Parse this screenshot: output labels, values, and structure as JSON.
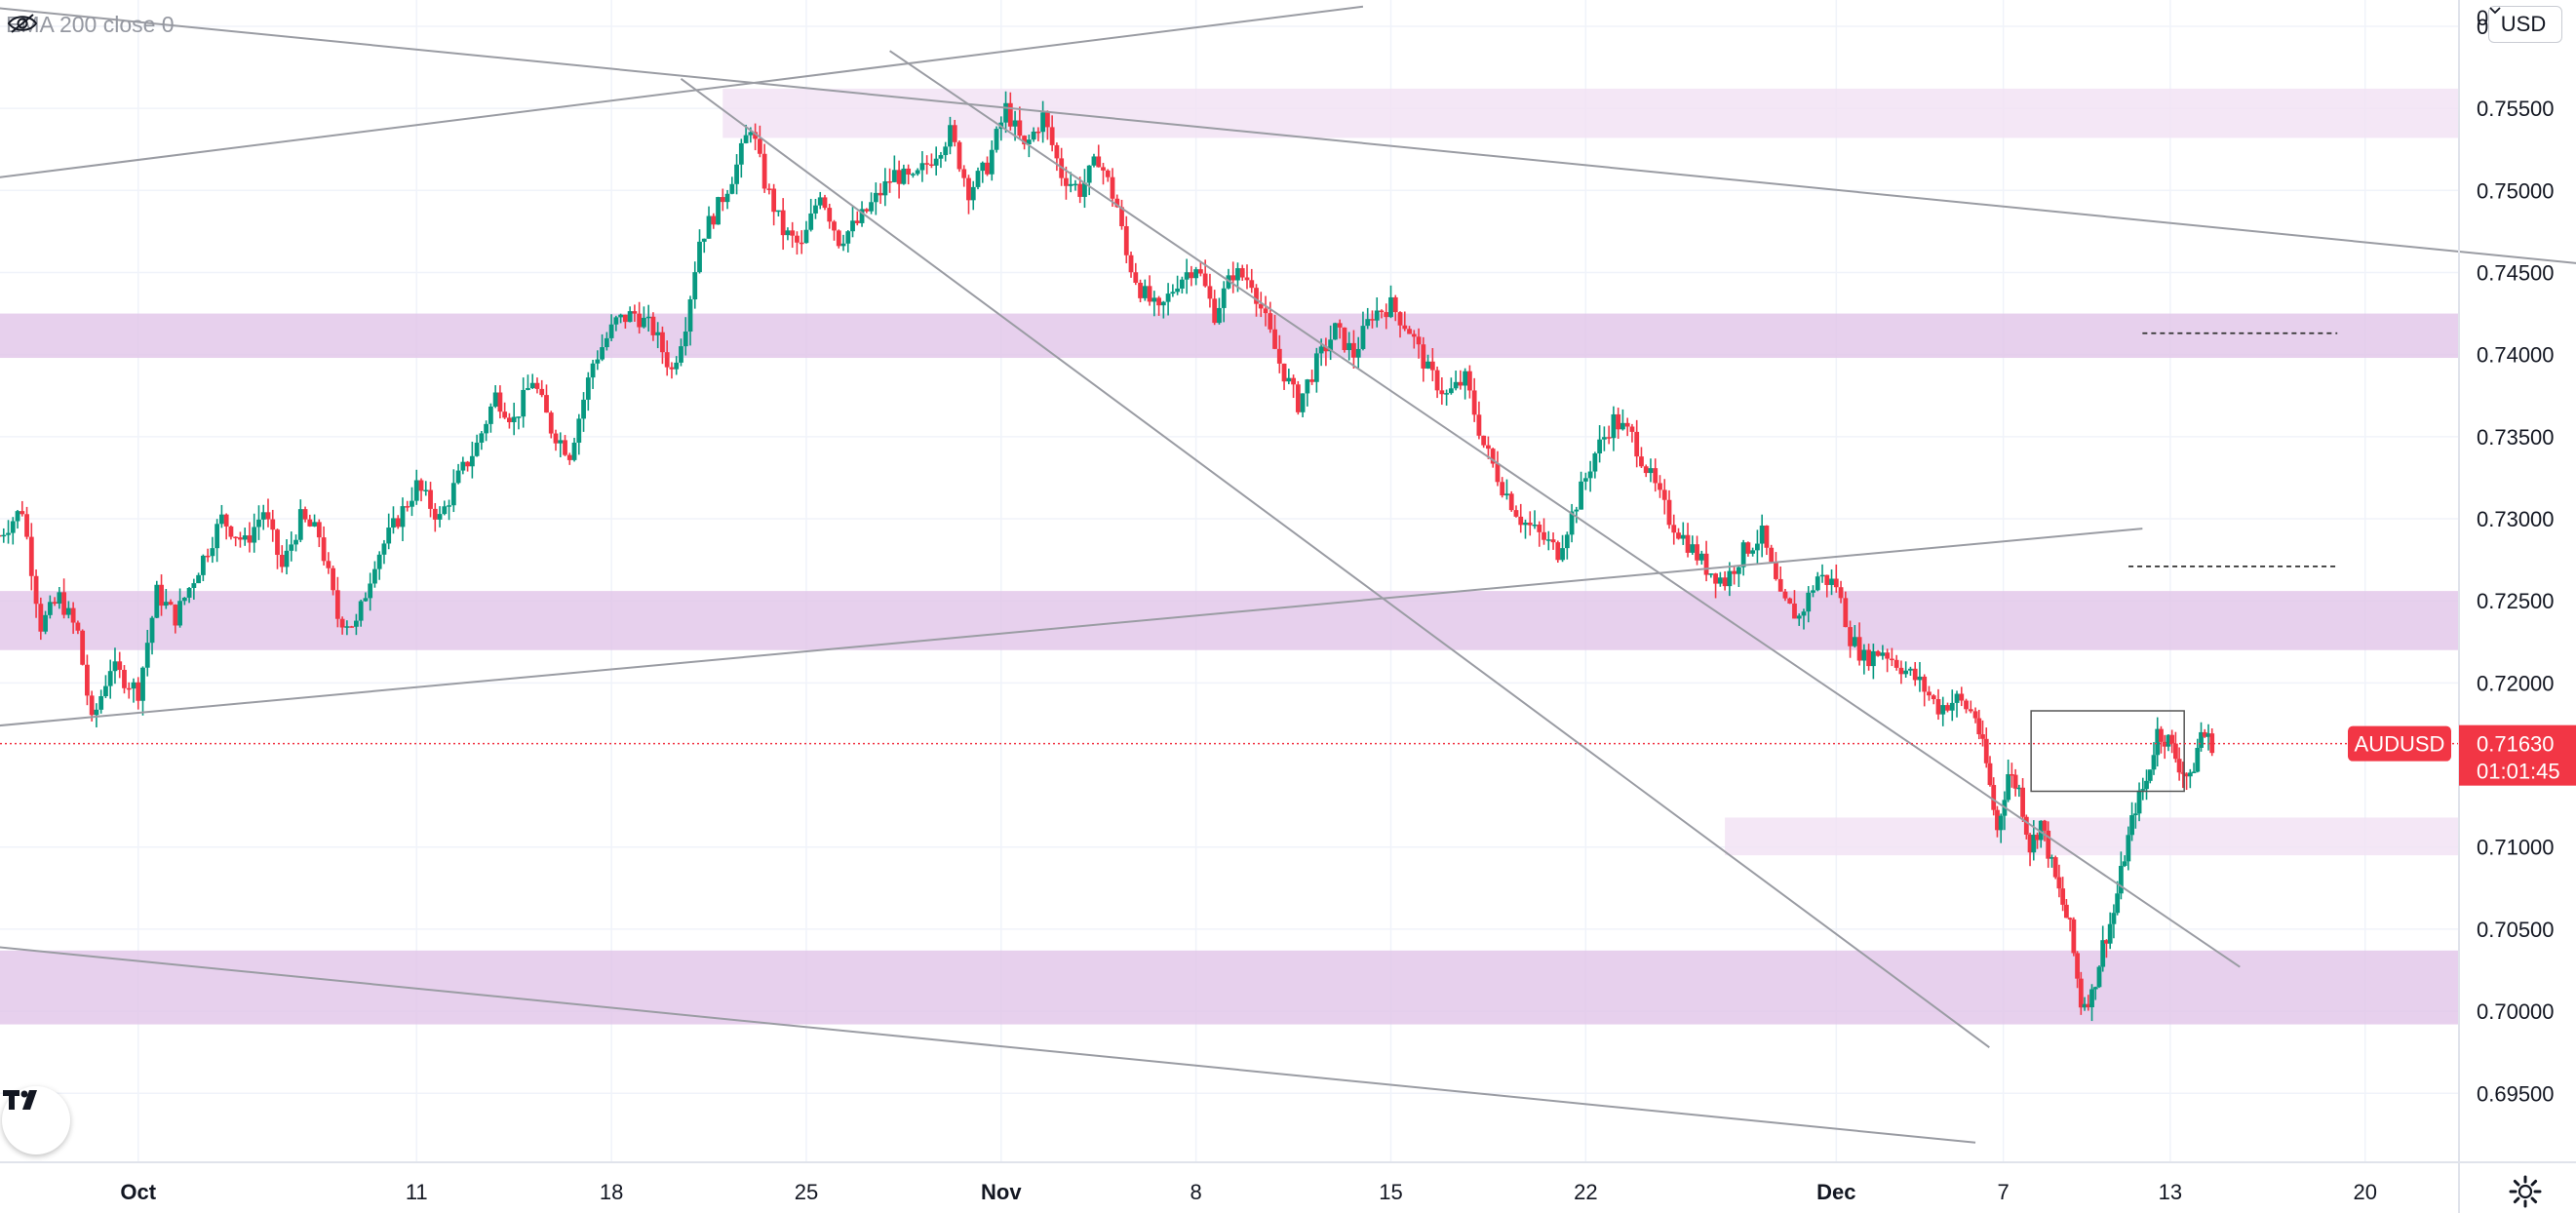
{
  "legend": {
    "indicator": "EMA 200 close 0",
    "visibility_icon": "eye-crossed-icon"
  },
  "currency_selector": {
    "value": "USD",
    "icon": "chevron-down-icon"
  },
  "symbol_badge": {
    "symbol": "AUDUSD",
    "price": "0.71630",
    "countdown": "01:01:45",
    "color": "#f23645"
  },
  "colors": {
    "up": "#089981",
    "down": "#f23645",
    "zone_strong": "#e1c4e9",
    "zone_light": "#f1e1f4",
    "trendline": "#9a9ca3",
    "grid": "#f0f3fa",
    "last_price_line": "#f23645"
  },
  "chart_data": {
    "type": "candlestick",
    "symbol": "AUDUSD",
    "timeframe_hint": "4h",
    "x_axis": {
      "ticks": [
        "Oct",
        "11",
        "18",
        "25",
        "Nov",
        "8",
        "15",
        "22",
        "Dec",
        "7",
        "13",
        "20"
      ]
    },
    "y_axis": {
      "ylim": [
        0.6908,
        0.7616
      ],
      "ticks": [
        "0.76000",
        "0.75500",
        "0.75000",
        "0.74500",
        "0.74000",
        "0.73500",
        "0.73000",
        "0.72500",
        "0.72000",
        "0.71630",
        "0.71000",
        "0.70500",
        "0.70000",
        "0.69500"
      ],
      "top_tick": "0"
    },
    "last_price": 0.7163,
    "zones": [
      {
        "from": 0.7532,
        "to": 0.7562,
        "strength": "light",
        "start": "2021-10-22"
      },
      {
        "from": 0.7398,
        "to": 0.7425,
        "strength": "strong",
        "start": "2021-09-26"
      },
      {
        "from": 0.722,
        "to": 0.7256,
        "strength": "strong",
        "start": "2021-09-26"
      },
      {
        "from": 0.7095,
        "to": 0.7118,
        "strength": "light",
        "start": "2021-11-27"
      },
      {
        "from": 0.6992,
        "to": 0.7037,
        "strength": "strong",
        "start": "2021-09-26"
      }
    ],
    "trendlines": [
      {
        "x1": "2021-09-26T00:00",
        "y1": 0.7611,
        "x2": "2021-12-28T00:00",
        "y2": 0.7455
      },
      {
        "x1": "2021-09-26T00:00",
        "y1": 0.7508,
        "x2": "2021-11-14T00:00",
        "y2": 0.7612
      },
      {
        "x1": "2021-10-20T12:00",
        "y1": 0.7568,
        "x2": "2021-12-06T12:00",
        "y2": 0.6978
      },
      {
        "x1": "2021-10-28T00:00",
        "y1": 0.7585,
        "x2": "2021-12-15T12:00",
        "y2": 0.7027
      },
      {
        "x1": "2021-09-26T00:00",
        "y1": 0.7174,
        "x2": "2021-12-12T00:00",
        "y2": 0.7294
      },
      {
        "x1": "2021-09-26T00:00",
        "y1": 0.7039,
        "x2": "2021-12-06T00:00",
        "y2": 0.692
      }
    ],
    "dashed_levels": [
      {
        "price": 0.7413,
        "from": "2021-12-12T00:00",
        "to": "2021-12-19T00:00"
      },
      {
        "price": 0.7271,
        "from": "2021-12-11T12:00",
        "to": "2021-12-19T00:00"
      }
    ],
    "range_box": {
      "from": "2021-12-08T00:00",
      "to": "2021-12-13T12:00",
      "high": 0.7183,
      "low": 0.7134
    },
    "path": [
      [
        "2021-09-26T00:00",
        0.729
      ],
      [
        "2021-09-26T20:00",
        0.7306
      ],
      [
        "2021-09-27T12:00",
        0.7235
      ],
      [
        "2021-09-28T04:00",
        0.7252
      ],
      [
        "2021-09-28T20:00",
        0.723
      ],
      [
        "2021-09-29T08:00",
        0.7175
      ],
      [
        "2021-09-30T00:00",
        0.721
      ],
      [
        "2021-10-01T00:00",
        0.7195
      ],
      [
        "2021-10-01T16:00",
        0.7255
      ],
      [
        "2021-10-02T08:00",
        0.724
      ],
      [
        "2021-10-03T04:00",
        0.727
      ],
      [
        "2021-10-04T00:00",
        0.73
      ],
      [
        "2021-10-04T20:00",
        0.7285
      ],
      [
        "2021-10-05T12:00",
        0.7305
      ],
      [
        "2021-10-06T04:00",
        0.727
      ],
      [
        "2021-10-06T20:00",
        0.73
      ],
      [
        "2021-10-07T12:00",
        0.729
      ],
      [
        "2021-10-08T04:00",
        0.724
      ],
      [
        "2021-10-08T20:00",
        0.7235
      ],
      [
        "2021-10-09T12:00",
        0.7275
      ],
      [
        "2021-10-10T04:00",
        0.7295
      ],
      [
        "2021-10-11T00:00",
        0.732
      ],
      [
        "2021-10-11T20:00",
        0.73
      ],
      [
        "2021-10-12T12:00",
        0.7325
      ],
      [
        "2021-10-13T04:00",
        0.7345
      ],
      [
        "2021-10-13T20:00",
        0.7375
      ],
      [
        "2021-10-14T12:00",
        0.736
      ],
      [
        "2021-10-15T04:00",
        0.7385
      ],
      [
        "2021-10-15T20:00",
        0.7355
      ],
      [
        "2021-10-16T12:00",
        0.734
      ],
      [
        "2021-10-17T08:00",
        0.7395
      ],
      [
        "2021-10-18T04:00",
        0.742
      ],
      [
        "2021-10-18T20:00",
        0.7425
      ],
      [
        "2021-10-19T12:00",
        0.7415
      ],
      [
        "2021-10-20T04:00",
        0.739
      ],
      [
        "2021-10-20T16:00",
        0.742
      ],
      [
        "2021-10-21T04:00",
        0.747
      ],
      [
        "2021-10-21T20:00",
        0.749
      ],
      [
        "2021-10-22T12:00",
        0.7515
      ],
      [
        "2021-10-23T00:00",
        0.754
      ],
      [
        "2021-10-23T12:00",
        0.7505
      ],
      [
        "2021-10-24T04:00",
        0.7475
      ],
      [
        "2021-10-24T20:00",
        0.7465
      ],
      [
        "2021-10-25T12:00",
        0.75
      ],
      [
        "2021-10-26T04:00",
        0.747
      ],
      [
        "2021-10-26T20:00",
        0.748
      ],
      [
        "2021-10-27T12:00",
        0.7495
      ],
      [
        "2021-10-28T04:00",
        0.751
      ],
      [
        "2021-10-28T20:00",
        0.7505
      ],
      [
        "2021-10-29T12:00",
        0.752
      ],
      [
        "2021-10-30T04:00",
        0.7535
      ],
      [
        "2021-10-30T20:00",
        0.75
      ],
      [
        "2021-10-31T12:00",
        0.7515
      ],
      [
        "2021-11-01T04:00",
        0.755
      ],
      [
        "2021-11-01T20:00",
        0.7525
      ],
      [
        "2021-11-02T12:00",
        0.7545
      ],
      [
        "2021-11-03T04:00",
        0.751
      ],
      [
        "2021-11-03T20:00",
        0.75
      ],
      [
        "2021-11-04T12:00",
        0.752
      ],
      [
        "2021-11-05T04:00",
        0.749
      ],
      [
        "2021-11-05T12:00",
        0.746
      ],
      [
        "2021-11-06T00:00",
        0.744
      ],
      [
        "2021-11-06T16:00",
        0.7425
      ],
      [
        "2021-11-07T08:00",
        0.7445
      ],
      [
        "2021-11-08T00:00",
        0.7455
      ],
      [
        "2021-11-08T16:00",
        0.7425
      ],
      [
        "2021-11-09T08:00",
        0.745
      ],
      [
        "2021-11-10T00:00",
        0.7445
      ],
      [
        "2021-11-10T12:00",
        0.742
      ],
      [
        "2021-11-11T00:00",
        0.7395
      ],
      [
        "2021-11-11T16:00",
        0.737
      ],
      [
        "2021-11-12T08:00",
        0.7395
      ],
      [
        "2021-11-13T00:00",
        0.7415
      ],
      [
        "2021-11-13T16:00",
        0.74
      ],
      [
        "2021-11-14T08:00",
        0.7425
      ],
      [
        "2021-11-15T00:00",
        0.743
      ],
      [
        "2021-11-15T16:00",
        0.7415
      ],
      [
        "2021-11-16T08:00",
        0.739
      ],
      [
        "2021-11-17T00:00",
        0.7375
      ],
      [
        "2021-11-17T16:00",
        0.7385
      ],
      [
        "2021-11-18T08:00",
        0.7345
      ],
      [
        "2021-11-19T00:00",
        0.732
      ],
      [
        "2021-11-19T16:00",
        0.73
      ],
      [
        "2021-11-20T08:00",
        0.729
      ],
      [
        "2021-11-21T00:00",
        0.728
      ],
      [
        "2021-11-21T16:00",
        0.731
      ],
      [
        "2021-11-22T08:00",
        0.734
      ],
      [
        "2021-11-23T00:00",
        0.736
      ],
      [
        "2021-11-23T16:00",
        0.735
      ],
      [
        "2021-11-24T08:00",
        0.7325
      ],
      [
        "2021-11-25T00:00",
        0.73
      ],
      [
        "2021-11-25T16:00",
        0.7285
      ],
      [
        "2021-11-26T08:00",
        0.727
      ],
      [
        "2021-11-27T00:00",
        0.7262
      ],
      [
        "2021-11-27T16:00",
        0.728
      ],
      [
        "2021-11-28T08:00",
        0.729
      ],
      [
        "2021-11-29T00:00",
        0.725
      ],
      [
        "2021-11-29T16:00",
        0.724
      ],
      [
        "2021-11-30T08:00",
        0.7265
      ],
      [
        "2021-12-01T00:00",
        0.726
      ],
      [
        "2021-12-01T12:00",
        0.7228
      ],
      [
        "2021-12-02T00:00",
        0.7215
      ],
      [
        "2021-12-02T16:00",
        0.722
      ],
      [
        "2021-12-03T08:00",
        0.721
      ],
      [
        "2021-12-04T00:00",
        0.72
      ],
      [
        "2021-12-04T16:00",
        0.7185
      ],
      [
        "2021-12-05T08:00",
        0.719
      ],
      [
        "2021-12-06T00:00",
        0.718
      ]
    ]
  }
}
